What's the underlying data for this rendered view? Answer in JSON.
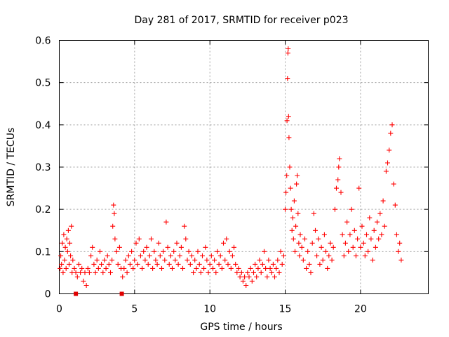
{
  "chart_data": {
    "type": "scatter",
    "title": "Day 281 of 2017, SRMTID for receiver p023",
    "xlabel": "GPS time / hours",
    "ylabel": "SRMTID / TECUs",
    "xlim": [
      0,
      24.5
    ],
    "ylim": [
      0,
      0.6
    ],
    "x_ticks": [
      0,
      5,
      10,
      15,
      20
    ],
    "y_ticks": [
      0,
      0.1,
      0.2,
      0.3,
      0.4,
      0.5,
      0.6
    ],
    "x_tick_labels": [
      "0",
      "5",
      "10",
      "15",
      "20"
    ],
    "y_tick_labels": [
      "0",
      "0.1",
      "0.2",
      "0.3",
      "0.4",
      "0.5",
      "0.6"
    ],
    "grid": true,
    "series": [
      {
        "name": "SRMTID",
        "marker": "plus",
        "color": "#ff0000",
        "points": [
          [
            0.05,
            0.06
          ],
          [
            0.1,
            0.09
          ],
          [
            0.15,
            0.07
          ],
          [
            0.2,
            0.12
          ],
          [
            0.25,
            0.05
          ],
          [
            0.3,
            0.14
          ],
          [
            0.35,
            0.08
          ],
          [
            0.4,
            0.11
          ],
          [
            0.45,
            0.06
          ],
          [
            0.5,
            0.13
          ],
          [
            0.55,
            0.1
          ],
          [
            0.6,
            0.15
          ],
          [
            0.65,
            0.07
          ],
          [
            0.7,
            0.12
          ],
          [
            0.75,
            0.09
          ],
          [
            0.8,
            0.16
          ],
          [
            0.85,
            0.05
          ],
          [
            0.9,
            0.08
          ],
          [
            1.0,
            0.06
          ],
          [
            1.1,
            0.05
          ],
          [
            1.2,
            0.04
          ],
          [
            1.3,
            0.07
          ],
          [
            1.4,
            0.05
          ],
          [
            1.5,
            0.06
          ],
          [
            1.6,
            0.03
          ],
          [
            1.7,
            0.05
          ],
          [
            1.8,
            0.02
          ],
          [
            1.9,
            0.06
          ],
          [
            2.0,
            0.05
          ],
          [
            2.1,
            0.09
          ],
          [
            2.2,
            0.11
          ],
          [
            2.3,
            0.07
          ],
          [
            2.4,
            0.05
          ],
          [
            2.5,
            0.08
          ],
          [
            2.6,
            0.06
          ],
          [
            2.7,
            0.1
          ],
          [
            2.8,
            0.07
          ],
          [
            2.9,
            0.05
          ],
          [
            3.0,
            0.08
          ],
          [
            3.1,
            0.06
          ],
          [
            3.2,
            0.09
          ],
          [
            3.3,
            0.07
          ],
          [
            3.4,
            0.05
          ],
          [
            3.5,
            0.08
          ],
          [
            3.55,
            0.16
          ],
          [
            3.6,
            0.21
          ],
          [
            3.65,
            0.19
          ],
          [
            3.7,
            0.13
          ],
          [
            3.8,
            0.1
          ],
          [
            3.9,
            0.07
          ],
          [
            4.0,
            0.11
          ],
          [
            4.1,
            0.06
          ],
          [
            4.2,
            0.04
          ],
          [
            4.3,
            0.06
          ],
          [
            4.4,
            0.08
          ],
          [
            4.5,
            0.05
          ],
          [
            4.6,
            0.09
          ],
          [
            4.7,
            0.07
          ],
          [
            4.8,
            0.1
          ],
          [
            4.9,
            0.06
          ],
          [
            5.0,
            0.08
          ],
          [
            5.1,
            0.12
          ],
          [
            5.2,
            0.07
          ],
          [
            5.3,
            0.13
          ],
          [
            5.4,
            0.09
          ],
          [
            5.5,
            0.06
          ],
          [
            5.6,
            0.1
          ],
          [
            5.7,
            0.08
          ],
          [
            5.8,
            0.11
          ],
          [
            5.9,
            0.07
          ],
          [
            6.0,
            0.09
          ],
          [
            6.1,
            0.13
          ],
          [
            6.2,
            0.06
          ],
          [
            6.3,
            0.1
          ],
          [
            6.4,
            0.08
          ],
          [
            6.5,
            0.07
          ],
          [
            6.6,
            0.12
          ],
          [
            6.7,
            0.09
          ],
          [
            6.8,
            0.06
          ],
          [
            6.9,
            0.1
          ],
          [
            7.0,
            0.08
          ],
          [
            7.1,
            0.17
          ],
          [
            7.2,
            0.11
          ],
          [
            7.3,
            0.07
          ],
          [
            7.4,
            0.09
          ],
          [
            7.5,
            0.06
          ],
          [
            7.6,
            0.1
          ],
          [
            7.7,
            0.08
          ],
          [
            7.8,
            0.12
          ],
          [
            7.9,
            0.07
          ],
          [
            8.0,
            0.09
          ],
          [
            8.1,
            0.11
          ],
          [
            8.2,
            0.06
          ],
          [
            8.3,
            0.16
          ],
          [
            8.4,
            0.13
          ],
          [
            8.5,
            0.08
          ],
          [
            8.6,
            0.1
          ],
          [
            8.7,
            0.07
          ],
          [
            8.8,
            0.09
          ],
          [
            8.9,
            0.05
          ],
          [
            9.0,
            0.08
          ],
          [
            9.1,
            0.06
          ],
          [
            9.2,
            0.1
          ],
          [
            9.3,
            0.07
          ],
          [
            9.4,
            0.05
          ],
          [
            9.5,
            0.09
          ],
          [
            9.6,
            0.06
          ],
          [
            9.7,
            0.11
          ],
          [
            9.8,
            0.08
          ],
          [
            9.9,
            0.05
          ],
          [
            10.0,
            0.07
          ],
          [
            10.1,
            0.09
          ],
          [
            10.2,
            0.06
          ],
          [
            10.3,
            0.08
          ],
          [
            10.4,
            0.05
          ],
          [
            10.5,
            0.1
          ],
          [
            10.6,
            0.07
          ],
          [
            10.7,
            0.09
          ],
          [
            10.8,
            0.06
          ],
          [
            10.9,
            0.12
          ],
          [
            11.0,
            0.08
          ],
          [
            11.1,
            0.13
          ],
          [
            11.2,
            0.07
          ],
          [
            11.3,
            0.1
          ],
          [
            11.4,
            0.06
          ],
          [
            11.5,
            0.09
          ],
          [
            11.6,
            0.11
          ],
          [
            11.7,
            0.07
          ],
          [
            11.8,
            0.05
          ],
          [
            11.9,
            0.06
          ],
          [
            12.0,
            0.04
          ],
          [
            12.1,
            0.05
          ],
          [
            12.2,
            0.03
          ],
          [
            12.3,
            0.04
          ],
          [
            12.4,
            0.02
          ],
          [
            12.5,
            0.05
          ],
          [
            12.6,
            0.04
          ],
          [
            12.7,
            0.06
          ],
          [
            12.8,
            0.03
          ],
          [
            12.9,
            0.05
          ],
          [
            13.0,
            0.07
          ],
          [
            13.1,
            0.04
          ],
          [
            13.2,
            0.06
          ],
          [
            13.3,
            0.08
          ],
          [
            13.4,
            0.05
          ],
          [
            13.5,
            0.07
          ],
          [
            13.6,
            0.1
          ],
          [
            13.7,
            0.06
          ],
          [
            13.8,
            0.04
          ],
          [
            13.9,
            0.08
          ],
          [
            14.0,
            0.06
          ],
          [
            14.1,
            0.05
          ],
          [
            14.2,
            0.07
          ],
          [
            14.3,
            0.04
          ],
          [
            14.4,
            0.06
          ],
          [
            14.5,
            0.08
          ],
          [
            14.6,
            0.05
          ],
          [
            14.7,
            0.1
          ],
          [
            14.8,
            0.07
          ],
          [
            14.9,
            0.09
          ],
          [
            15.0,
            0.2
          ],
          [
            15.05,
            0.24
          ],
          [
            15.1,
            0.28
          ],
          [
            15.12,
            0.41
          ],
          [
            15.15,
            0.51
          ],
          [
            15.18,
            0.57
          ],
          [
            15.2,
            0.58
          ],
          [
            15.22,
            0.42
          ],
          [
            15.25,
            0.37
          ],
          [
            15.3,
            0.3
          ],
          [
            15.35,
            0.25
          ],
          [
            15.4,
            0.2
          ],
          [
            15.45,
            0.15
          ],
          [
            15.5,
            0.18
          ],
          [
            15.55,
            0.13
          ],
          [
            15.6,
            0.22
          ],
          [
            15.65,
            0.1
          ],
          [
            15.7,
            0.16
          ],
          [
            15.75,
            0.26
          ],
          [
            15.8,
            0.28
          ],
          [
            15.85,
            0.19
          ],
          [
            15.9,
            0.12
          ],
          [
            15.95,
            0.09
          ],
          [
            16.0,
            0.14
          ],
          [
            16.1,
            0.11
          ],
          [
            16.2,
            0.08
          ],
          [
            16.3,
            0.13
          ],
          [
            16.4,
            0.06
          ],
          [
            16.5,
            0.1
          ],
          [
            16.6,
            0.07
          ],
          [
            16.7,
            0.05
          ],
          [
            16.8,
            0.12
          ],
          [
            16.9,
            0.19
          ],
          [
            17.0,
            0.15
          ],
          [
            17.1,
            0.09
          ],
          [
            17.2,
            0.13
          ],
          [
            17.3,
            0.07
          ],
          [
            17.4,
            0.11
          ],
          [
            17.5,
            0.08
          ],
          [
            17.6,
            0.14
          ],
          [
            17.7,
            0.1
          ],
          [
            17.8,
            0.06
          ],
          [
            17.9,
            0.09
          ],
          [
            18.0,
            0.12
          ],
          [
            18.1,
            0.08
          ],
          [
            18.2,
            0.11
          ],
          [
            18.3,
            0.2
          ],
          [
            18.4,
            0.25
          ],
          [
            18.5,
            0.27
          ],
          [
            18.55,
            0.3
          ],
          [
            18.6,
            0.32
          ],
          [
            18.7,
            0.24
          ],
          [
            18.8,
            0.14
          ],
          [
            18.9,
            0.09
          ],
          [
            19.0,
            0.12
          ],
          [
            19.1,
            0.17
          ],
          [
            19.2,
            0.1
          ],
          [
            19.3,
            0.14
          ],
          [
            19.4,
            0.2
          ],
          [
            19.5,
            0.11
          ],
          [
            19.6,
            0.15
          ],
          [
            19.7,
            0.09
          ],
          [
            19.8,
            0.13
          ],
          [
            19.9,
            0.25
          ],
          [
            20.0,
            0.11
          ],
          [
            20.1,
            0.16
          ],
          [
            20.2,
            0.12
          ],
          [
            20.3,
            0.09
          ],
          [
            20.4,
            0.14
          ],
          [
            20.5,
            0.1
          ],
          [
            20.6,
            0.18
          ],
          [
            20.7,
            0.13
          ],
          [
            20.8,
            0.08
          ],
          [
            20.9,
            0.15
          ],
          [
            21.0,
            0.11
          ],
          [
            21.1,
            0.17
          ],
          [
            21.2,
            0.13
          ],
          [
            21.3,
            0.19
          ],
          [
            21.4,
            0.14
          ],
          [
            21.5,
            0.22
          ],
          [
            21.6,
            0.16
          ],
          [
            21.7,
            0.29
          ],
          [
            21.8,
            0.31
          ],
          [
            21.9,
            0.34
          ],
          [
            22.0,
            0.38
          ],
          [
            22.1,
            0.4
          ],
          [
            22.2,
            0.26
          ],
          [
            22.3,
            0.21
          ],
          [
            22.4,
            0.14
          ],
          [
            22.5,
            0.1
          ],
          [
            22.6,
            0.12
          ],
          [
            22.7,
            0.08
          ]
        ]
      }
    ],
    "gap_markers_x": [
      1.1,
      4.15
    ]
  }
}
